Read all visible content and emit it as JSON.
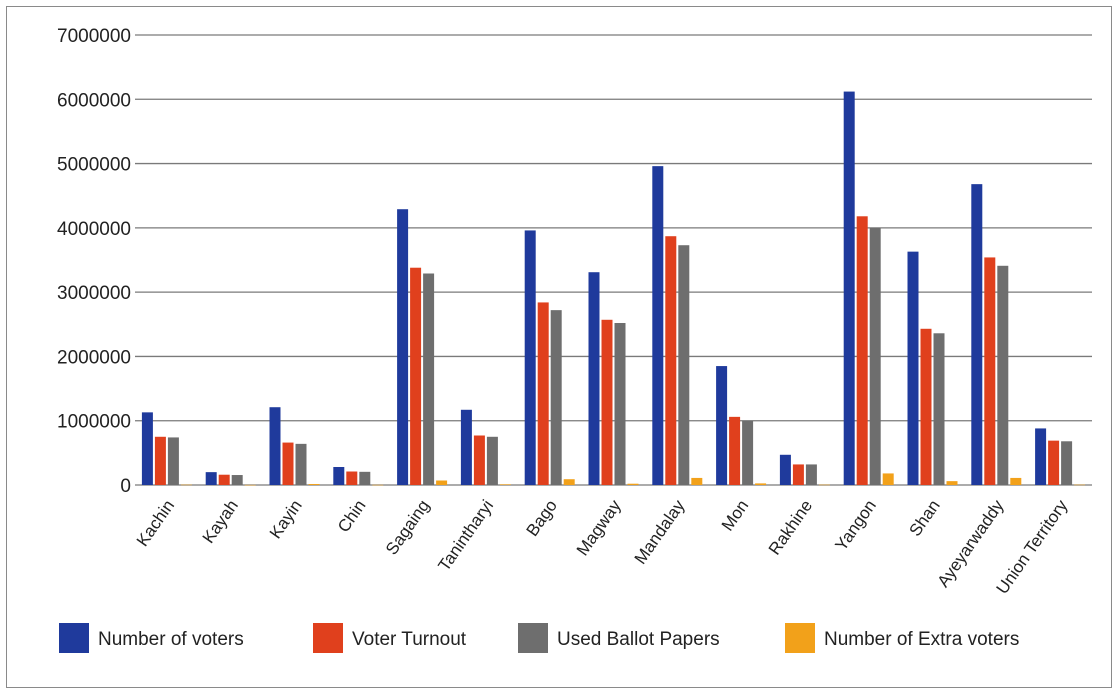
{
  "chart_data": {
    "type": "bar",
    "categories": [
      "Kachin",
      "Kayah",
      "Kayin",
      "Chin",
      "Sagaing",
      "Tanintharyi",
      "Bago",
      "Magway",
      "Mandalay",
      "Mon",
      "Rakhine",
      "Yangon",
      "Shan",
      "Ayeyarwaddy",
      "Union Territory"
    ],
    "series": [
      {
        "name": "Number of voters",
        "color": "#1f3a9c",
        "values": [
          1130000,
          200000,
          1210000,
          280000,
          4290000,
          1170000,
          3960000,
          3310000,
          4960000,
          1850000,
          470000,
          6120000,
          3630000,
          4680000,
          880000
        ]
      },
      {
        "name": "Voter Turnout",
        "color": "#e0401d",
        "values": [
          750000,
          160000,
          660000,
          210000,
          3380000,
          770000,
          2840000,
          2570000,
          3870000,
          1060000,
          320000,
          4180000,
          2430000,
          3540000,
          690000
        ]
      },
      {
        "name": "Used Ballot Papers",
        "color": "#6e6e6e",
        "values": [
          740000,
          155000,
          640000,
          205000,
          3290000,
          750000,
          2720000,
          2520000,
          3730000,
          1000000,
          320000,
          4000000,
          2360000,
          3410000,
          680000
        ]
      },
      {
        "name": "Number of Extra voters",
        "color": "#f2a11a",
        "values": [
          5000,
          2000,
          15000,
          3000,
          70000,
          10000,
          90000,
          20000,
          110000,
          25000,
          5000,
          180000,
          60000,
          110000,
          5000
        ]
      }
    ],
    "y_ticks": [
      "0",
      "1000000",
      "2000000",
      "3000000",
      "4000000",
      "5000000",
      "6000000",
      "7000000"
    ],
    "ylim": [
      0,
      7000000
    ],
    "grid": true,
    "legend_position": "bottom"
  }
}
